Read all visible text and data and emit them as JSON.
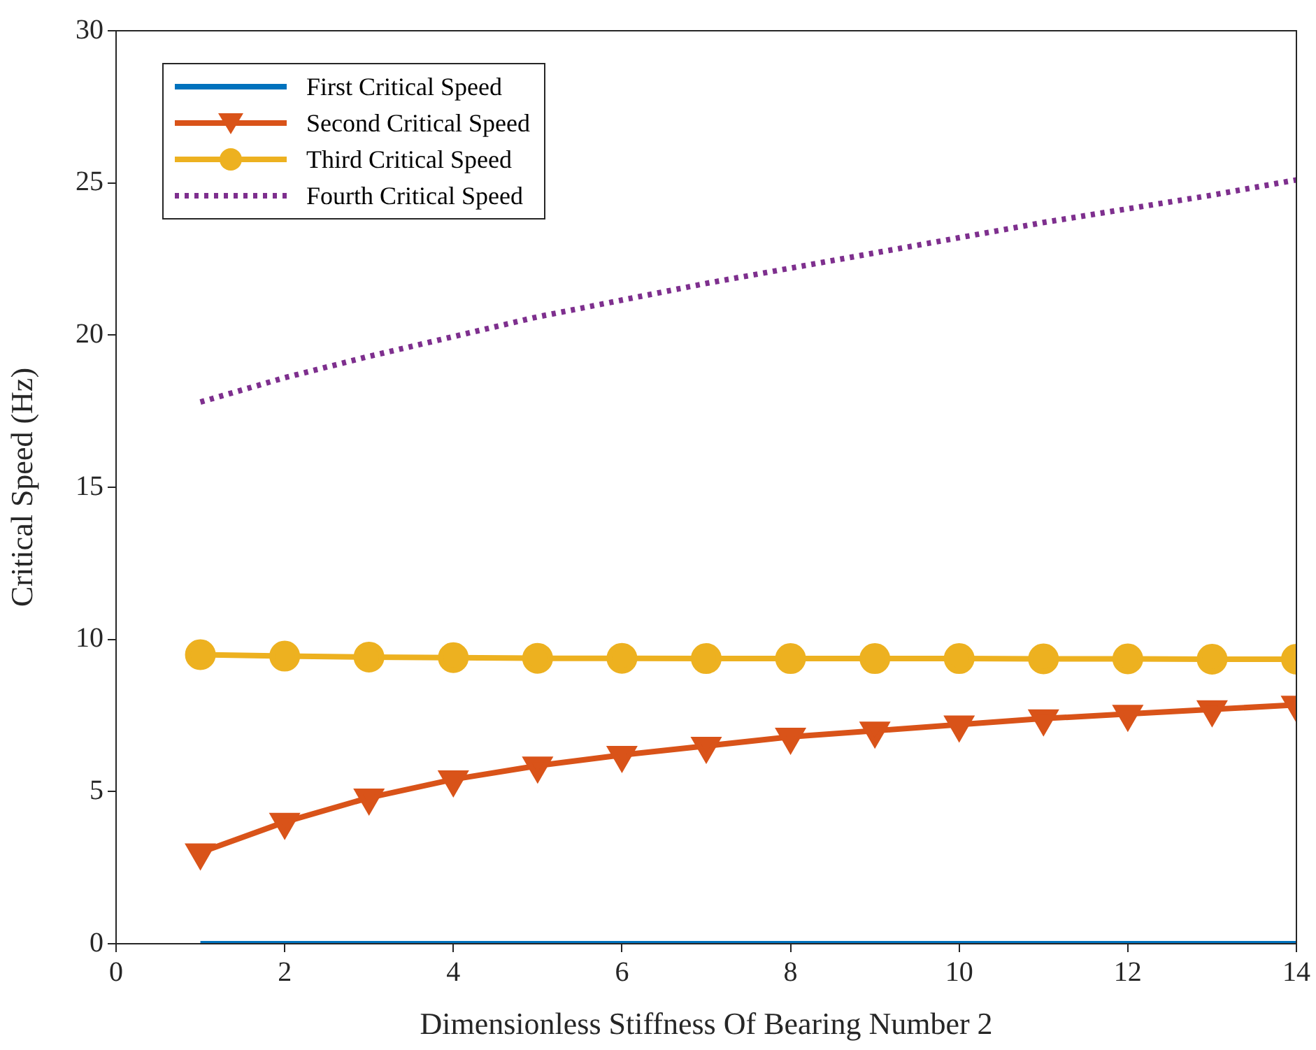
{
  "chart_data": {
    "type": "line",
    "xlabel": "Dimensionless Stiffness Of Bearing Number 2",
    "ylabel": "Critical Speed (Hz)",
    "x": [
      1,
      2,
      3,
      4,
      5,
      6,
      7,
      8,
      9,
      10,
      11,
      12,
      13,
      14
    ],
    "series": [
      {
        "name": "First Critical Speed",
        "color": "#0072bd",
        "marker": "none",
        "line_style": "solid",
        "values": [
          0,
          0,
          0,
          0,
          0,
          0,
          0,
          0,
          0,
          0,
          0,
          0,
          0,
          0
        ]
      },
      {
        "name": "Second Critical Speed",
        "color": "#d95319",
        "marker": "triangle",
        "line_style": "solid",
        "values": [
          3.0,
          4.0,
          4.8,
          5.4,
          5.85,
          6.2,
          6.5,
          6.8,
          7.0,
          7.2,
          7.4,
          7.55,
          7.7,
          7.85
        ]
      },
      {
        "name": "Third Critical Speed",
        "color": "#edb120",
        "marker": "circle",
        "line_style": "solid",
        "values": [
          9.5,
          9.45,
          9.42,
          9.4,
          9.38,
          9.38,
          9.37,
          9.37,
          9.37,
          9.37,
          9.36,
          9.36,
          9.35,
          9.35
        ]
      },
      {
        "name": "Fourth Critical Speed",
        "color": "#7e2f8e",
        "marker": "none",
        "line_style": "dotted",
        "values": [
          17.8,
          18.6,
          19.3,
          19.95,
          20.6,
          21.15,
          21.7,
          22.2,
          22.7,
          23.2,
          23.7,
          24.15,
          24.6,
          25.1
        ]
      }
    ],
    "xlim": [
      0,
      14
    ],
    "xticks": [
      0,
      2,
      4,
      6,
      8,
      10,
      12,
      14
    ],
    "ylim": [
      0,
      30
    ],
    "yticks": [
      0,
      5,
      10,
      15,
      20,
      25,
      30
    ],
    "grid": false,
    "legend": "top left"
  }
}
